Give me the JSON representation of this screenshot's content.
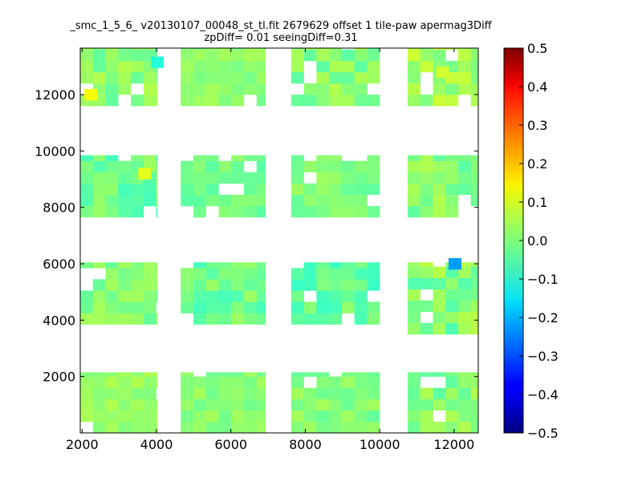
{
  "chart_data": {
    "type": "heatmap",
    "title_line_1": "_smc_1_5_6_ v20130107_00048_st_tl.fit 2679629 offset 1 tile-paw apermag3Diff",
    "title_line_2": "zpDiff= 0.01 seeingDiff=0.31",
    "xlabel": "",
    "ylabel": "",
    "xlim": [
      1950,
      12650
    ],
    "ylim": [
      0,
      13650
    ],
    "xticks": [
      2000,
      4000,
      6000,
      8000,
      10000,
      12000
    ],
    "yticks": [
      2000,
      4000,
      6000,
      8000,
      10000,
      12000
    ],
    "colorbar": {
      "colormap": "jet",
      "vmin": -0.5,
      "vmax": 0.5,
      "ticks": [
        0.5,
        0.4,
        0.3,
        0.2,
        0.1,
        0.0,
        -0.1,
        -0.2,
        -0.3,
        -0.4,
        -0.5
      ],
      "tick_labels": [
        "0.5",
        "0.4",
        "0.3",
        "0.2",
        "0.1",
        "0.0",
        "−0.1",
        "−0.2",
        "−0.3",
        "−0.4",
        "−0.5"
      ]
    },
    "grid": false,
    "cell_size": [
      340,
      400
    ],
    "outlier_cells": [
      {
        "x": 11850,
        "y": 5800,
        "value": -0.22
      },
      {
        "x": 3510,
        "y": 9000,
        "value": 0.1
      },
      {
        "x": 2060,
        "y": 11800,
        "value": 0.12
      },
      {
        "x": 11520,
        "y": 12600,
        "value": 0.08
      },
      {
        "x": 3850,
        "y": 12950,
        "value": -0.09
      }
    ],
    "blocks": [
      {
        "x_range": [
          1950,
          4020
        ],
        "y_range": [
          0,
          2150
        ],
        "value_range": [
          0.0,
          0.05
        ]
      },
      {
        "x_range": [
          4650,
          6930
        ],
        "y_range": [
          0,
          2150
        ],
        "value_range": [
          -0.02,
          0.04
        ]
      },
      {
        "x_range": [
          7620,
          10000
        ],
        "y_range": [
          0,
          2150
        ],
        "value_range": [
          -0.03,
          0.04
        ]
      },
      {
        "x_range": [
          10750,
          12650
        ],
        "y_range": [
          0,
          2150
        ],
        "value_range": [
          -0.04,
          0.05
        ]
      },
      {
        "x_range": [
          1950,
          4020
        ],
        "y_range": [
          3850,
          6050
        ],
        "value_range": [
          -0.03,
          0.04
        ]
      },
      {
        "x_range": [
          4650,
          6930
        ],
        "y_range": [
          3850,
          6050
        ],
        "value_range": [
          -0.06,
          0.03
        ]
      },
      {
        "x_range": [
          7620,
          10000
        ],
        "y_range": [
          3850,
          6050
        ],
        "value_range": [
          -0.08,
          0.02
        ]
      },
      {
        "x_range": [
          10750,
          12650
        ],
        "y_range": [
          3500,
          6050
        ],
        "value_range": [
          -0.05,
          0.06
        ]
      },
      {
        "x_range": [
          1950,
          4020
        ],
        "y_range": [
          7650,
          9850
        ],
        "value_range": [
          -0.06,
          0.03
        ]
      },
      {
        "x_range": [
          4650,
          6930
        ],
        "y_range": [
          7650,
          9850
        ],
        "value_range": [
          -0.04,
          0.02
        ]
      },
      {
        "x_range": [
          7620,
          10000
        ],
        "y_range": [
          7650,
          9850
        ],
        "value_range": [
          -0.03,
          0.03
        ]
      },
      {
        "x_range": [
          10750,
          12650
        ],
        "y_range": [
          7650,
          9850
        ],
        "value_range": [
          -0.04,
          0.05
        ]
      },
      {
        "x_range": [
          1950,
          4020
        ],
        "y_range": [
          11600,
          13650
        ],
        "value_range": [
          -0.03,
          0.06
        ]
      },
      {
        "x_range": [
          4650,
          6930
        ],
        "y_range": [
          11600,
          13650
        ],
        "value_range": [
          -0.01,
          0.04
        ]
      },
      {
        "x_range": [
          7620,
          10000
        ],
        "y_range": [
          11600,
          13650
        ],
        "value_range": [
          -0.04,
          0.05
        ]
      },
      {
        "x_range": [
          10750,
          12650
        ],
        "y_range": [
          11600,
          13650
        ],
        "value_range": [
          -0.02,
          0.08
        ]
      }
    ]
  }
}
